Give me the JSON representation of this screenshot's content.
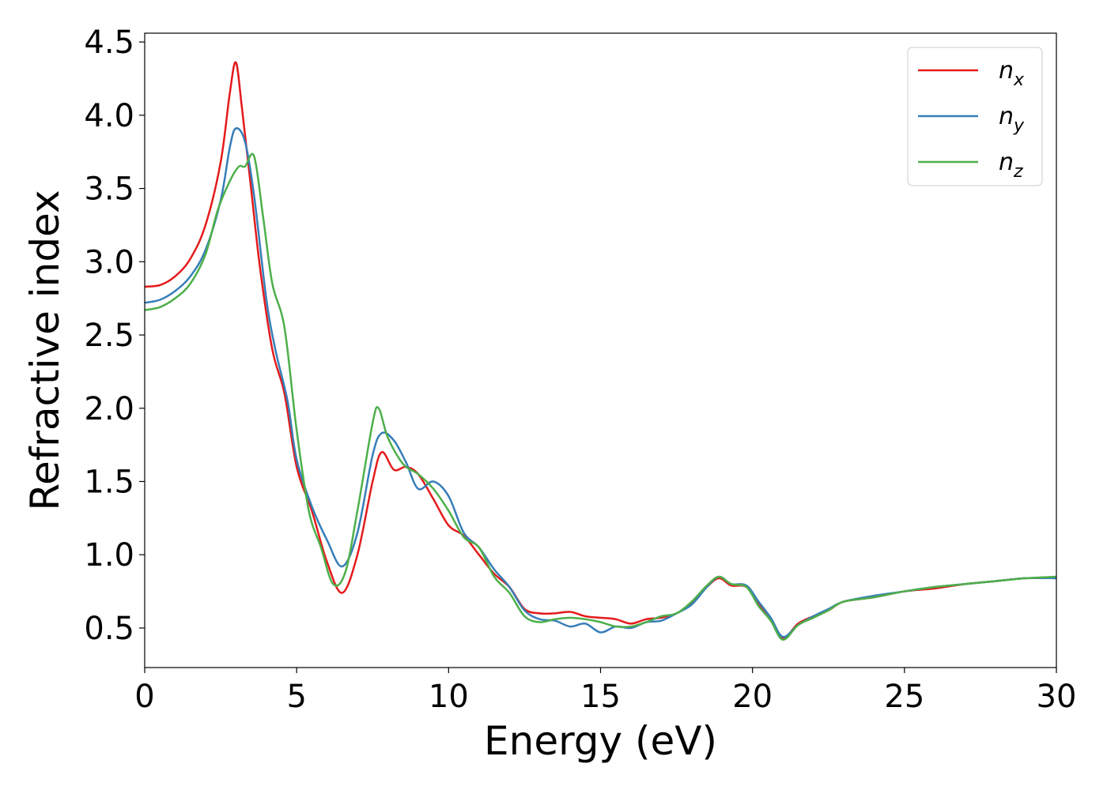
{
  "chart_data": {
    "type": "line",
    "title": "",
    "xlabel": "Energy (eV)",
    "ylabel": "Refractive index",
    "xlim": [
      0,
      30
    ],
    "ylim": [
      0.23,
      4.56
    ],
    "xticks": [
      0,
      5,
      10,
      15,
      20,
      25,
      30
    ],
    "xtick_labels": [
      "0",
      "5",
      "10",
      "15",
      "20",
      "25",
      "30"
    ],
    "yticks": [
      0.5,
      1.0,
      1.5,
      2.0,
      2.5,
      3.0,
      3.5,
      4.0,
      4.5
    ],
    "ytick_labels": [
      "0.5",
      "1.0",
      "1.5",
      "2.0",
      "2.5",
      "3.0",
      "3.5",
      "4.0",
      "4.5"
    ],
    "grid": false,
    "legend_position": "top-right",
    "series": [
      {
        "name": "n",
        "subscript": "x",
        "color": "#e41a1c",
        "points": [
          [
            0,
            2.83
          ],
          [
            0.5,
            2.84
          ],
          [
            1.0,
            2.9
          ],
          [
            1.5,
            3.02
          ],
          [
            2.0,
            3.25
          ],
          [
            2.5,
            3.68
          ],
          [
            2.8,
            4.15
          ],
          [
            3.0,
            4.36
          ],
          [
            3.2,
            4.05
          ],
          [
            3.5,
            3.5
          ],
          [
            3.8,
            2.95
          ],
          [
            4.2,
            2.4
          ],
          [
            4.6,
            2.1
          ],
          [
            5.0,
            1.6
          ],
          [
            5.5,
            1.3
          ],
          [
            6.0,
            0.95
          ],
          [
            6.5,
            0.74
          ],
          [
            7.0,
            1.0
          ],
          [
            7.5,
            1.5
          ],
          [
            7.8,
            1.7
          ],
          [
            8.2,
            1.58
          ],
          [
            8.6,
            1.6
          ],
          [
            9.0,
            1.55
          ],
          [
            9.5,
            1.38
          ],
          [
            10.0,
            1.2
          ],
          [
            10.5,
            1.13
          ],
          [
            11.0,
            1.0
          ],
          [
            11.5,
            0.87
          ],
          [
            12.0,
            0.78
          ],
          [
            12.5,
            0.63
          ],
          [
            13.0,
            0.6
          ],
          [
            13.5,
            0.6
          ],
          [
            14.0,
            0.61
          ],
          [
            14.5,
            0.58
          ],
          [
            15.0,
            0.57
          ],
          [
            15.5,
            0.56
          ],
          [
            16.0,
            0.53
          ],
          [
            16.5,
            0.56
          ],
          [
            17.0,
            0.57
          ],
          [
            17.5,
            0.6
          ],
          [
            18.0,
            0.67
          ],
          [
            18.5,
            0.78
          ],
          [
            18.9,
            0.84
          ],
          [
            19.3,
            0.79
          ],
          [
            19.8,
            0.78
          ],
          [
            20.2,
            0.66
          ],
          [
            20.6,
            0.56
          ],
          [
            21.0,
            0.43
          ],
          [
            21.5,
            0.53
          ],
          [
            22.0,
            0.58
          ],
          [
            22.5,
            0.62
          ],
          [
            23.0,
            0.68
          ],
          [
            24.0,
            0.71
          ],
          [
            25.0,
            0.75
          ],
          [
            26.0,
            0.77
          ],
          [
            27.0,
            0.8
          ],
          [
            28.0,
            0.82
          ],
          [
            29.0,
            0.84
          ],
          [
            30.0,
            0.84
          ]
        ]
      },
      {
        "name": "n",
        "subscript": "y",
        "color": "#377eb8",
        "points": [
          [
            0,
            2.72
          ],
          [
            0.5,
            2.74
          ],
          [
            1.0,
            2.8
          ],
          [
            1.5,
            2.9
          ],
          [
            2.0,
            3.08
          ],
          [
            2.5,
            3.42
          ],
          [
            2.8,
            3.78
          ],
          [
            3.0,
            3.91
          ],
          [
            3.3,
            3.82
          ],
          [
            3.6,
            3.45
          ],
          [
            4.0,
            2.75
          ],
          [
            4.3,
            2.4
          ],
          [
            4.7,
            2.05
          ],
          [
            5.0,
            1.65
          ],
          [
            5.5,
            1.33
          ],
          [
            6.0,
            1.1
          ],
          [
            6.5,
            0.92
          ],
          [
            7.0,
            1.15
          ],
          [
            7.5,
            1.68
          ],
          [
            7.8,
            1.83
          ],
          [
            8.2,
            1.78
          ],
          [
            8.6,
            1.63
          ],
          [
            9.0,
            1.45
          ],
          [
            9.5,
            1.5
          ],
          [
            10.0,
            1.4
          ],
          [
            10.5,
            1.15
          ],
          [
            11.0,
            1.05
          ],
          [
            11.5,
            0.9
          ],
          [
            12.0,
            0.78
          ],
          [
            12.5,
            0.62
          ],
          [
            13.0,
            0.56
          ],
          [
            13.5,
            0.55
          ],
          [
            14.0,
            0.51
          ],
          [
            14.5,
            0.53
          ],
          [
            15.0,
            0.47
          ],
          [
            15.5,
            0.51
          ],
          [
            16.0,
            0.5
          ],
          [
            16.5,
            0.54
          ],
          [
            17.0,
            0.55
          ],
          [
            17.5,
            0.6
          ],
          [
            18.0,
            0.66
          ],
          [
            18.5,
            0.78
          ],
          [
            18.9,
            0.85
          ],
          [
            19.3,
            0.8
          ],
          [
            19.8,
            0.79
          ],
          [
            20.2,
            0.68
          ],
          [
            20.6,
            0.57
          ],
          [
            21.0,
            0.44
          ],
          [
            21.5,
            0.52
          ],
          [
            22.0,
            0.58
          ],
          [
            22.5,
            0.63
          ],
          [
            23.0,
            0.68
          ],
          [
            24.0,
            0.72
          ],
          [
            25.0,
            0.75
          ],
          [
            26.0,
            0.78
          ],
          [
            27.0,
            0.8
          ],
          [
            28.0,
            0.82
          ],
          [
            29.0,
            0.84
          ],
          [
            30.0,
            0.84
          ]
        ]
      },
      {
        "name": "n",
        "subscript": "z",
        "color": "#4daf4a",
        "points": [
          [
            0,
            2.67
          ],
          [
            0.5,
            2.69
          ],
          [
            1.0,
            2.75
          ],
          [
            1.5,
            2.85
          ],
          [
            2.0,
            3.05
          ],
          [
            2.4,
            3.35
          ],
          [
            2.8,
            3.55
          ],
          [
            3.1,
            3.65
          ],
          [
            3.3,
            3.65
          ],
          [
            3.6,
            3.72
          ],
          [
            3.9,
            3.3
          ],
          [
            4.2,
            2.85
          ],
          [
            4.6,
            2.55
          ],
          [
            5.0,
            1.85
          ],
          [
            5.4,
            1.3
          ],
          [
            5.8,
            1.05
          ],
          [
            6.2,
            0.8
          ],
          [
            6.6,
            0.88
          ],
          [
            7.0,
            1.3
          ],
          [
            7.5,
            1.9
          ],
          [
            7.7,
            2.0
          ],
          [
            8.0,
            1.8
          ],
          [
            8.5,
            1.62
          ],
          [
            9.0,
            1.55
          ],
          [
            9.5,
            1.45
          ],
          [
            10.0,
            1.3
          ],
          [
            10.5,
            1.12
          ],
          [
            11.0,
            1.05
          ],
          [
            11.5,
            0.85
          ],
          [
            12.0,
            0.74
          ],
          [
            12.5,
            0.58
          ],
          [
            13.0,
            0.54
          ],
          [
            13.5,
            0.56
          ],
          [
            14.0,
            0.57
          ],
          [
            14.5,
            0.56
          ],
          [
            15.0,
            0.54
          ],
          [
            15.5,
            0.51
          ],
          [
            16.0,
            0.51
          ],
          [
            16.5,
            0.54
          ],
          [
            17.0,
            0.58
          ],
          [
            17.5,
            0.6
          ],
          [
            18.0,
            0.68
          ],
          [
            18.5,
            0.79
          ],
          [
            18.9,
            0.85
          ],
          [
            19.3,
            0.8
          ],
          [
            19.8,
            0.78
          ],
          [
            20.2,
            0.65
          ],
          [
            20.6,
            0.55
          ],
          [
            21.0,
            0.42
          ],
          [
            21.5,
            0.52
          ],
          [
            22.0,
            0.57
          ],
          [
            22.5,
            0.62
          ],
          [
            23.0,
            0.68
          ],
          [
            24.0,
            0.71
          ],
          [
            25.0,
            0.75
          ],
          [
            26.0,
            0.78
          ],
          [
            27.0,
            0.8
          ],
          [
            28.0,
            0.82
          ],
          [
            29.0,
            0.84
          ],
          [
            30.0,
            0.85
          ]
        ]
      }
    ]
  }
}
